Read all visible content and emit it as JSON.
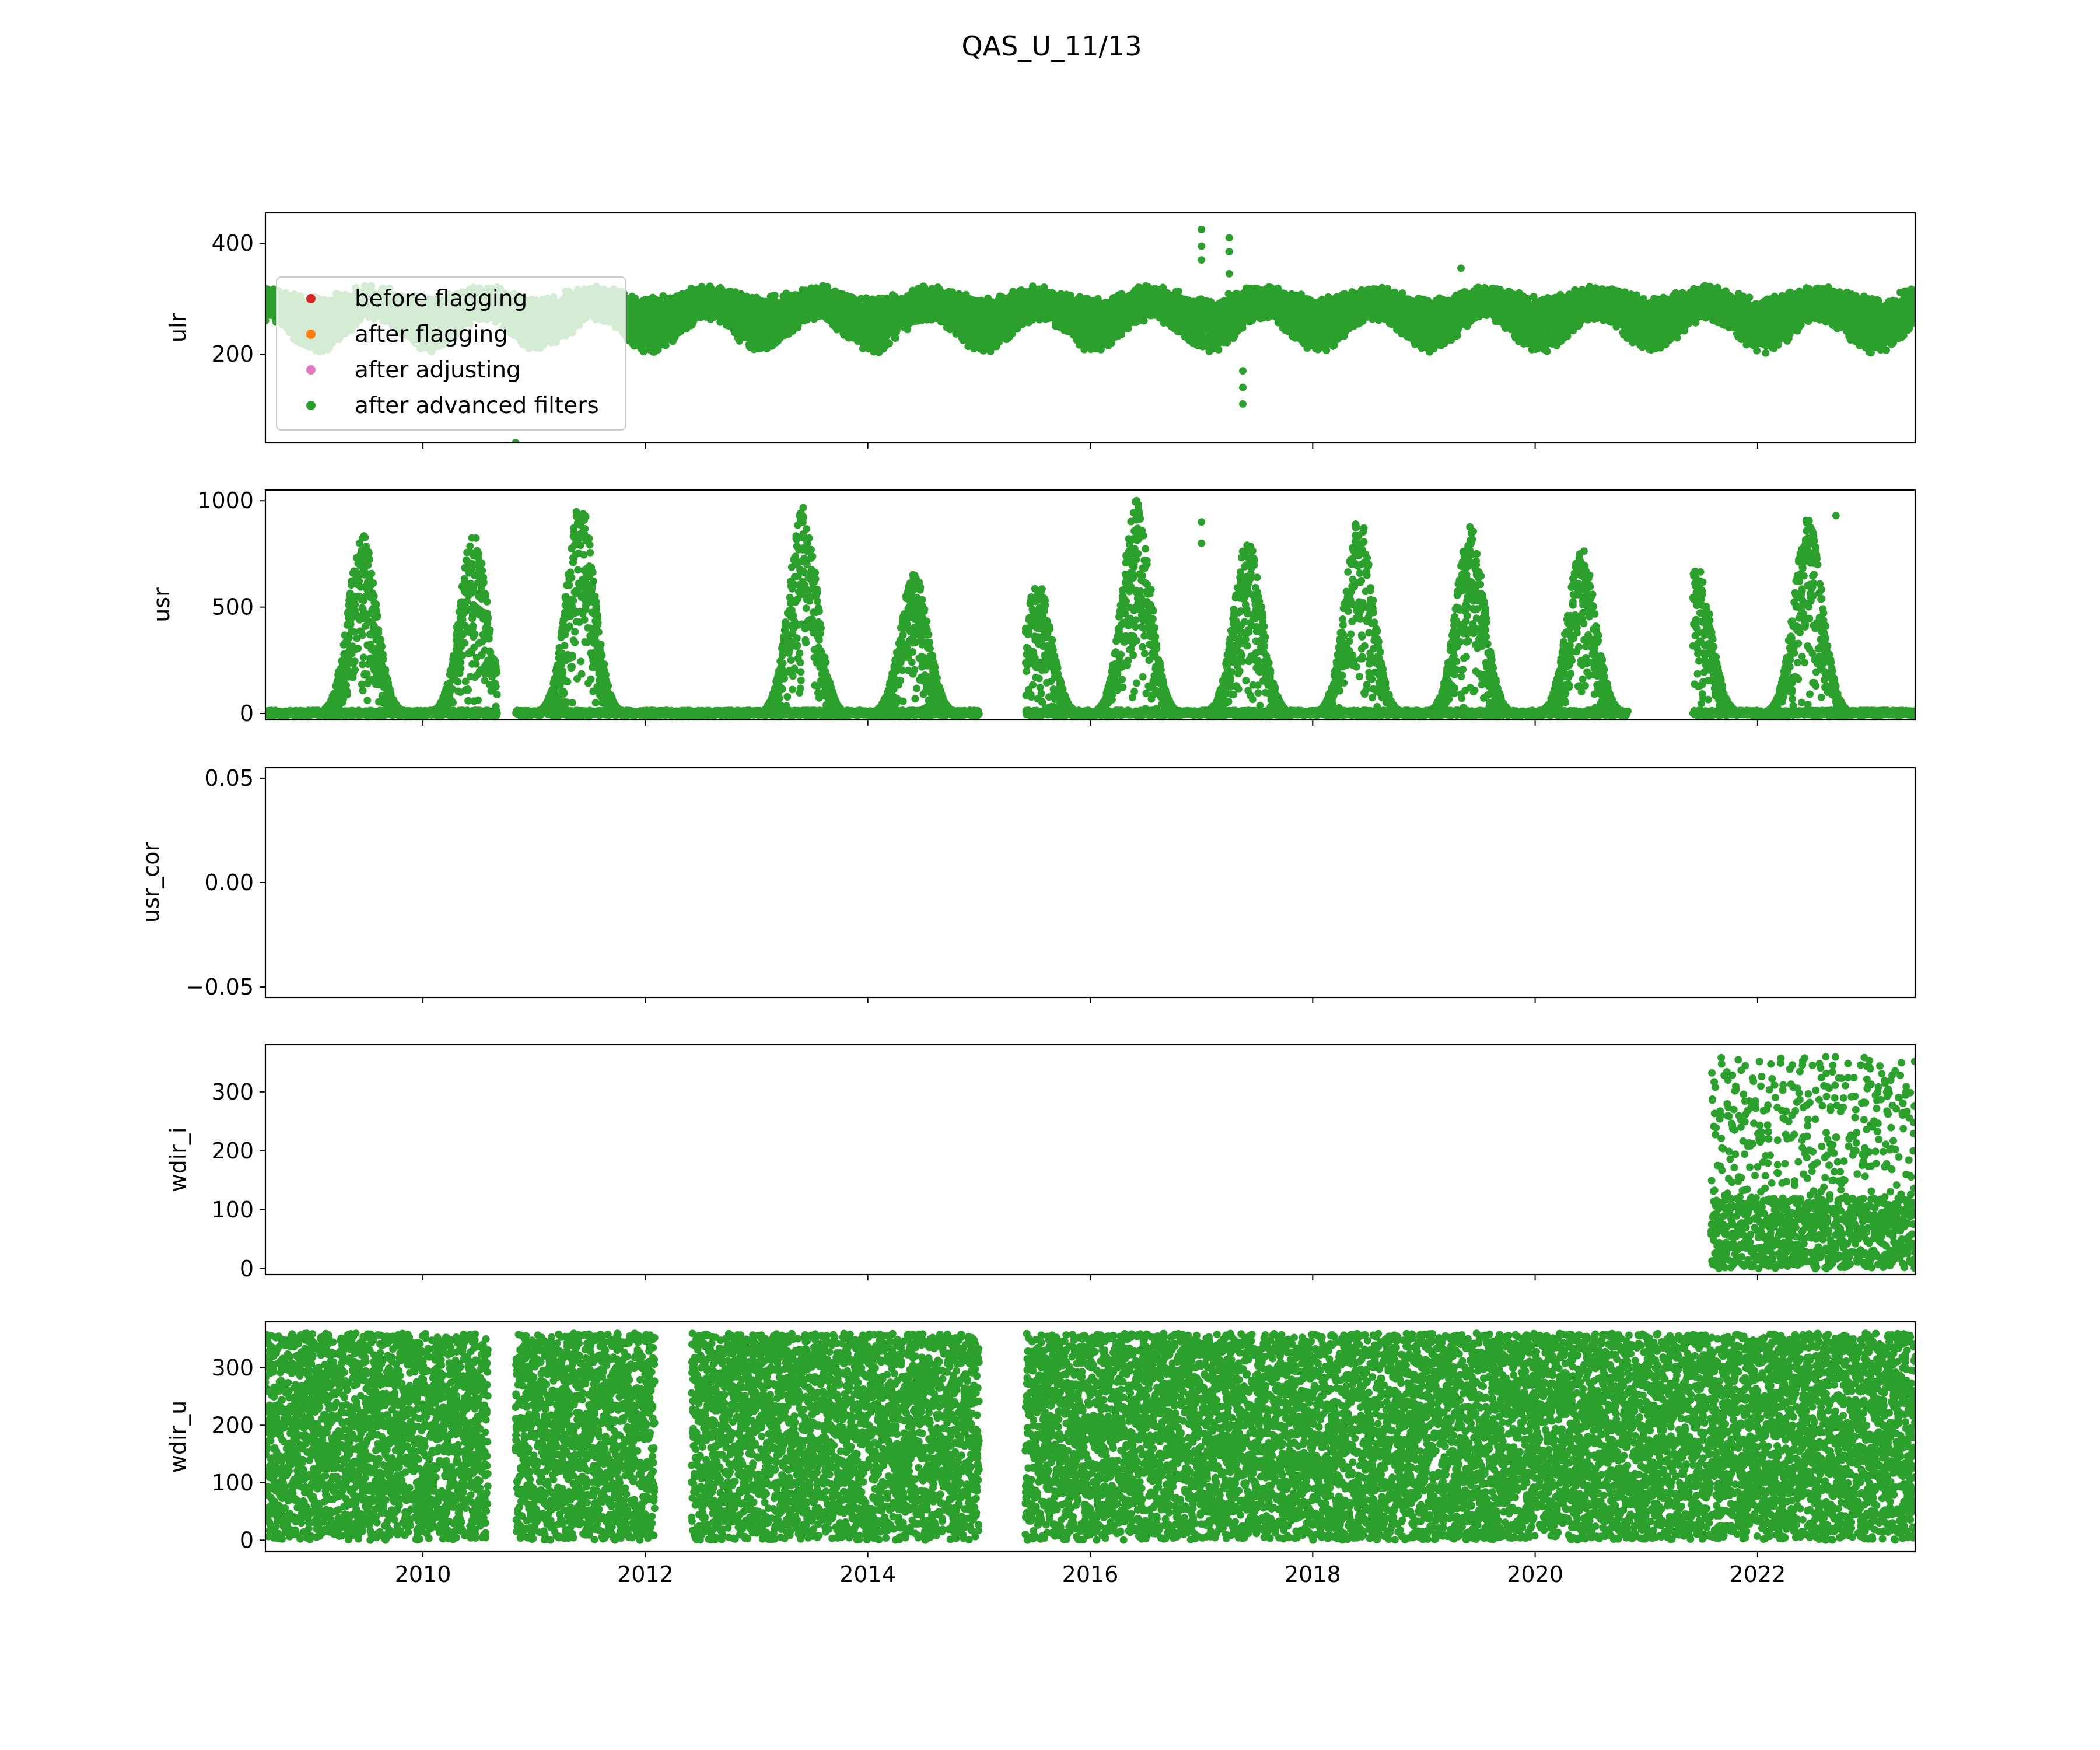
{
  "chart_data": {
    "type": "scatter",
    "title": "QAS_U_11/13",
    "x_axis": {
      "type": "date",
      "range": [
        "2008-08-01",
        "2023-06-01"
      ],
      "tick_labels": [
        "2010",
        "2012",
        "2014",
        "2016",
        "2018",
        "2020",
        "2022"
      ]
    },
    "legend": {
      "placement": "first panel, lower-left",
      "entries": [
        {
          "label": "before flagging",
          "color": "#d62728"
        },
        {
          "label": "after flagging",
          "color": "#ff7f0e"
        },
        {
          "label": "after adjusting",
          "color": "#e377c2"
        },
        {
          "label": "after advanced filters",
          "color": "#2ca02c"
        }
      ]
    },
    "panels": [
      {
        "ylabel": "ulr",
        "ylim": [
          40,
          455
        ],
        "yticks": [
          200,
          400
        ],
        "ytick_labels": [
          "200",
          "400"
        ],
        "pattern": "seasonal",
        "segments": [
          {
            "start": "2008-08-01",
            "end": "2023-06-01"
          }
        ],
        "summer_high": 315,
        "winter_high": 295,
        "summer_low": 270,
        "winter_low": 210,
        "outliers": [
          [
            "2017-01-01",
            425
          ],
          [
            "2017-01-01",
            395
          ],
          [
            "2017-01-01",
            370
          ],
          [
            "2017-04-01",
            410
          ],
          [
            "2017-04-01",
            385
          ],
          [
            "2017-04-01",
            345
          ],
          [
            "2017-05-15",
            170
          ],
          [
            "2017-05-15",
            140
          ],
          [
            "2017-05-15",
            110
          ],
          [
            "2010-11-01",
            40
          ],
          [
            "2019-05-01",
            355
          ]
        ],
        "series": "after advanced filters"
      },
      {
        "ylabel": "usr",
        "ylim": [
          -30,
          1050
        ],
        "yticks": [
          0,
          500,
          1000
        ],
        "ytick_labels": [
          "0",
          "500",
          "1000"
        ],
        "pattern": "seasonal_peaks",
        "peaks": [
          [
            "2009-06-15",
            850
          ],
          [
            "2010-06-15",
            850
          ],
          [
            "2011-06-01",
            1000
          ],
          [
            "2013-06-01",
            980
          ],
          [
            "2014-06-01",
            660
          ],
          [
            "2015-07-10",
            620
          ],
          [
            "2016-06-01",
            1000
          ],
          [
            "2017-06-01",
            820
          ],
          [
            "2018-06-01",
            930
          ],
          [
            "2019-06-01",
            880
          ],
          [
            "2020-06-01",
            780
          ],
          [
            "2021-06-15",
            700
          ],
          [
            "2022-06-15",
            930
          ]
        ],
        "gaps": [
          [
            "2010-09-01",
            "2010-11-01"
          ],
          [
            "2015-01-01",
            "2015-06-01"
          ],
          [
            "2020-11-01",
            "2021-06-01"
          ]
        ],
        "outliers": [
          [
            "2017-01-01",
            900
          ],
          [
            "2017-01-01",
            800
          ],
          [
            "2016-06-01",
            1000
          ],
          [
            "2022-09-15",
            930
          ]
        ],
        "series": "after advanced filters"
      },
      {
        "ylabel": "usr_cor",
        "ylim": [
          -0.055,
          0.055
        ],
        "yticks": [
          -0.05,
          0.0,
          0.05
        ],
        "ytick_labels": [
          "−0.05",
          "0.00",
          "0.05"
        ],
        "pattern": "empty",
        "series": "after advanced filters"
      },
      {
        "ylabel": "wdir_i",
        "ylim": [
          -10,
          380
        ],
        "yticks": [
          0,
          100,
          200,
          300
        ],
        "ytick_labels": [
          "0",
          "100",
          "200",
          "300"
        ],
        "pattern": "uniform_noise",
        "segments": [
          {
            "start": "2021-08-01",
            "end": "2023-06-01"
          }
        ],
        "distribution": "dense 0-120, sparse 120-360",
        "series": "after advanced filters"
      },
      {
        "ylabel": "wdir_u",
        "ylim": [
          -20,
          380
        ],
        "yticks": [
          0,
          100,
          200,
          300
        ],
        "ytick_labels": [
          "0",
          "100",
          "200",
          "300"
        ],
        "pattern": "uniform_fill",
        "segments": [
          {
            "start": "2008-08-01",
            "end": "2010-08-01"
          },
          {
            "start": "2010-11-01",
            "end": "2012-02-01"
          },
          {
            "start": "2012-06-01",
            "end": "2015-01-01"
          },
          {
            "start": "2015-06-01",
            "end": "2023-06-01"
          }
        ],
        "value_range": [
          0,
          360
        ],
        "series": "after advanced filters"
      }
    ]
  }
}
